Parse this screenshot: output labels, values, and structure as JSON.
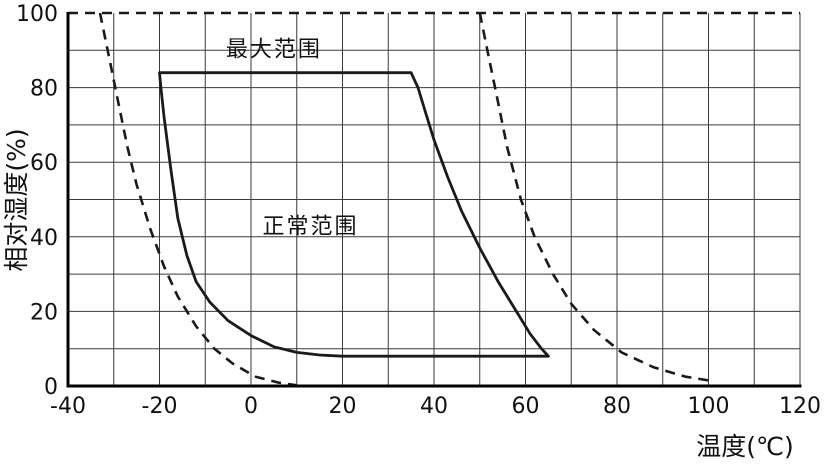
{
  "chart_data": {
    "type": "area",
    "title": "",
    "xlabel": "温度(℃)",
    "ylabel": "相对湿度(%)",
    "xlim": [
      -40,
      120
    ],
    "ylim": [
      0,
      100
    ],
    "x_ticks": [
      -40,
      -20,
      0,
      20,
      40,
      60,
      80,
      100,
      120
    ],
    "y_ticks": [
      0,
      20,
      40,
      60,
      80,
      100
    ],
    "grid_step_x": 10,
    "grid_step_y": 10,
    "grid": true,
    "legend": "none",
    "colors": {
      "line": "#1a1a1a",
      "grid": "#3a3a3a",
      "axis": "#000000"
    },
    "annotations": [
      {
        "text": "最大范围",
        "x": 5,
        "y": 90.5
      },
      {
        "text": "正常范围",
        "x": 13,
        "y": 43
      }
    ],
    "normal_range": {
      "name": "正常范围",
      "style": "solid",
      "closed": true,
      "points": [
        [
          -20,
          84
        ],
        [
          35,
          84
        ],
        [
          36.5,
          80
        ],
        [
          38,
          74
        ],
        [
          40,
          66
        ],
        [
          43,
          56
        ],
        [
          46,
          47
        ],
        [
          50,
          37
        ],
        [
          54,
          28
        ],
        [
          58,
          20
        ],
        [
          61,
          14
        ],
        [
          63.5,
          10
        ],
        [
          65,
          8
        ],
        [
          40,
          8
        ],
        [
          20,
          8
        ],
        [
          15,
          8.3
        ],
        [
          10,
          9
        ],
        [
          5,
          10.5
        ],
        [
          0,
          13.5
        ],
        [
          -5,
          17.5
        ],
        [
          -9,
          22.5
        ],
        [
          -12,
          28
        ],
        [
          -14,
          35
        ],
        [
          -16,
          45
        ],
        [
          -17.5,
          58
        ],
        [
          -19,
          72
        ],
        [
          -19.7,
          80
        ],
        [
          -20,
          84
        ]
      ]
    },
    "max_range": {
      "name": "最大范围",
      "style": "dashed",
      "top_line": {
        "y": 100,
        "x_from": -40,
        "x_to": 120
      },
      "left_curve": [
        [
          -33,
          100
        ],
        [
          -31,
          88
        ],
        [
          -29,
          76
        ],
        [
          -27,
          64
        ],
        [
          -25,
          54
        ],
        [
          -22,
          42
        ],
        [
          -19,
          32
        ],
        [
          -16,
          24
        ],
        [
          -12,
          16
        ],
        [
          -8,
          10
        ],
        [
          -4,
          6
        ],
        [
          1,
          2.5
        ],
        [
          6,
          0.9
        ],
        [
          10,
          0.2
        ]
      ],
      "right_curve": [
        [
          50,
          100
        ],
        [
          52,
          88
        ],
        [
          54,
          76
        ],
        [
          56,
          64
        ],
        [
          59,
          50
        ],
        [
          62,
          40
        ],
        [
          66,
          30
        ],
        [
          70,
          22
        ],
        [
          75,
          15
        ],
        [
          81,
          9
        ],
        [
          88,
          5
        ],
        [
          95,
          2.5
        ],
        [
          100,
          1.5
        ]
      ]
    }
  }
}
